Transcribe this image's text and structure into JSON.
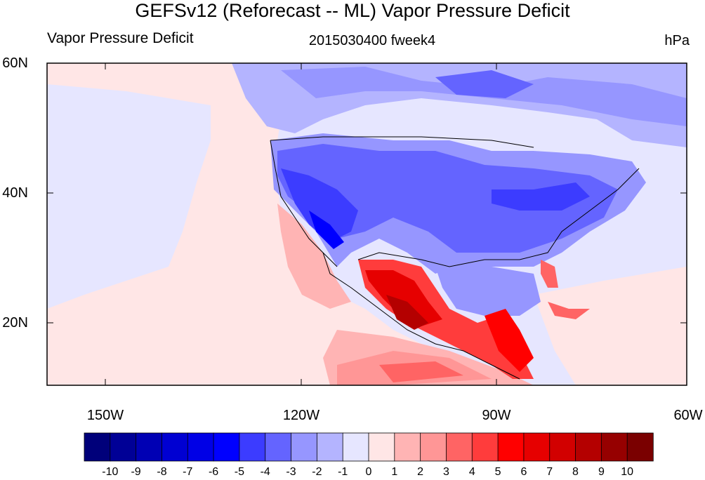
{
  "header": {
    "title": "GEFSv12 (Reforecast -- ML) Vapor Pressure Deficit",
    "left_label": "Vapor Pressure Deficit",
    "center_label": "2015030400 fweek4",
    "units_label": "hPa"
  },
  "axes": {
    "lat_labels": [
      "60N",
      "40N",
      "20N"
    ],
    "lon_labels": [
      "150W",
      "120W",
      "90W",
      "60W"
    ]
  },
  "colorbar": {
    "labels": [
      "-10",
      "-9",
      "-8",
      "-7",
      "-6",
      "-5",
      "-4",
      "-3",
      "-2",
      "-1",
      "0",
      "1",
      "2",
      "3",
      "4",
      "5",
      "6",
      "7",
      "8",
      "9",
      "10"
    ],
    "colors": [
      "#00007a",
      "#000096",
      "#0000b4",
      "#0000d2",
      "#0000e6",
      "#0000ff",
      "#3c3cff",
      "#6464ff",
      "#9696ff",
      "#b4b4ff",
      "#e6e6ff",
      "#ffe6e6",
      "#ffb4b4",
      "#ff9696",
      "#ff6464",
      "#ff3c3c",
      "#ff0000",
      "#e60000",
      "#d20000",
      "#b40000",
      "#960000",
      "#7a0000"
    ]
  }
}
